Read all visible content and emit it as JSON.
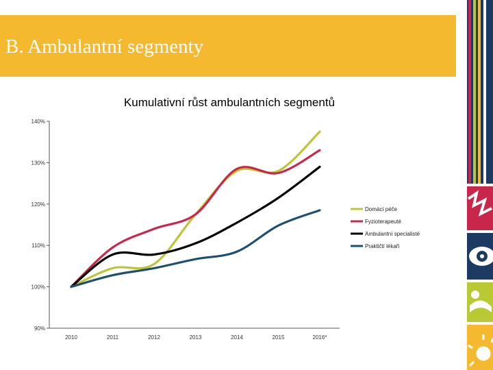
{
  "header": {
    "title": "B. Ambulantní segmenty"
  },
  "colors": {
    "header_bg": "#f5b930",
    "strip_navy": "#1d3a63",
    "strip_red": "#c8264a",
    "strip_lime": "#b9c934",
    "strip_yellow": "#f5b930"
  },
  "chart_data": {
    "type": "line",
    "title": "Kumulativní růst ambulantních segmentů",
    "xlabel": "",
    "ylabel": "",
    "categories": [
      "2010",
      "2011",
      "2012",
      "2013",
      "2014",
      "2015",
      "2016*"
    ],
    "ylim": [
      0.9,
      1.4
    ],
    "yticks": [
      0.9,
      1.0,
      1.1,
      1.2,
      1.3,
      1.4
    ],
    "ytick_labels": [
      "90%",
      "100%",
      "110%",
      "120%",
      "130%",
      "140%"
    ],
    "grid": false,
    "legend_position": "right",
    "series": [
      {
        "name": "Domácí péče",
        "color": "#bcc634",
        "values": [
          1.0,
          1.045,
          1.055,
          1.175,
          1.28,
          1.28,
          1.375
        ]
      },
      {
        "name": "Fyzioterapeuté",
        "color": "#c8264a",
        "values": [
          1.0,
          1.095,
          1.14,
          1.175,
          1.285,
          1.275,
          1.33
        ]
      },
      {
        "name": "Ambulantní specialisté",
        "color": "#000000",
        "values": [
          1.0,
          1.078,
          1.078,
          1.105,
          1.155,
          1.215,
          1.29
        ]
      },
      {
        "name": "Praktičtí lékaři",
        "color": "#1d4f73",
        "values": [
          1.0,
          1.028,
          1.045,
          1.067,
          1.085,
          1.148,
          1.185
        ]
      }
    ]
  }
}
